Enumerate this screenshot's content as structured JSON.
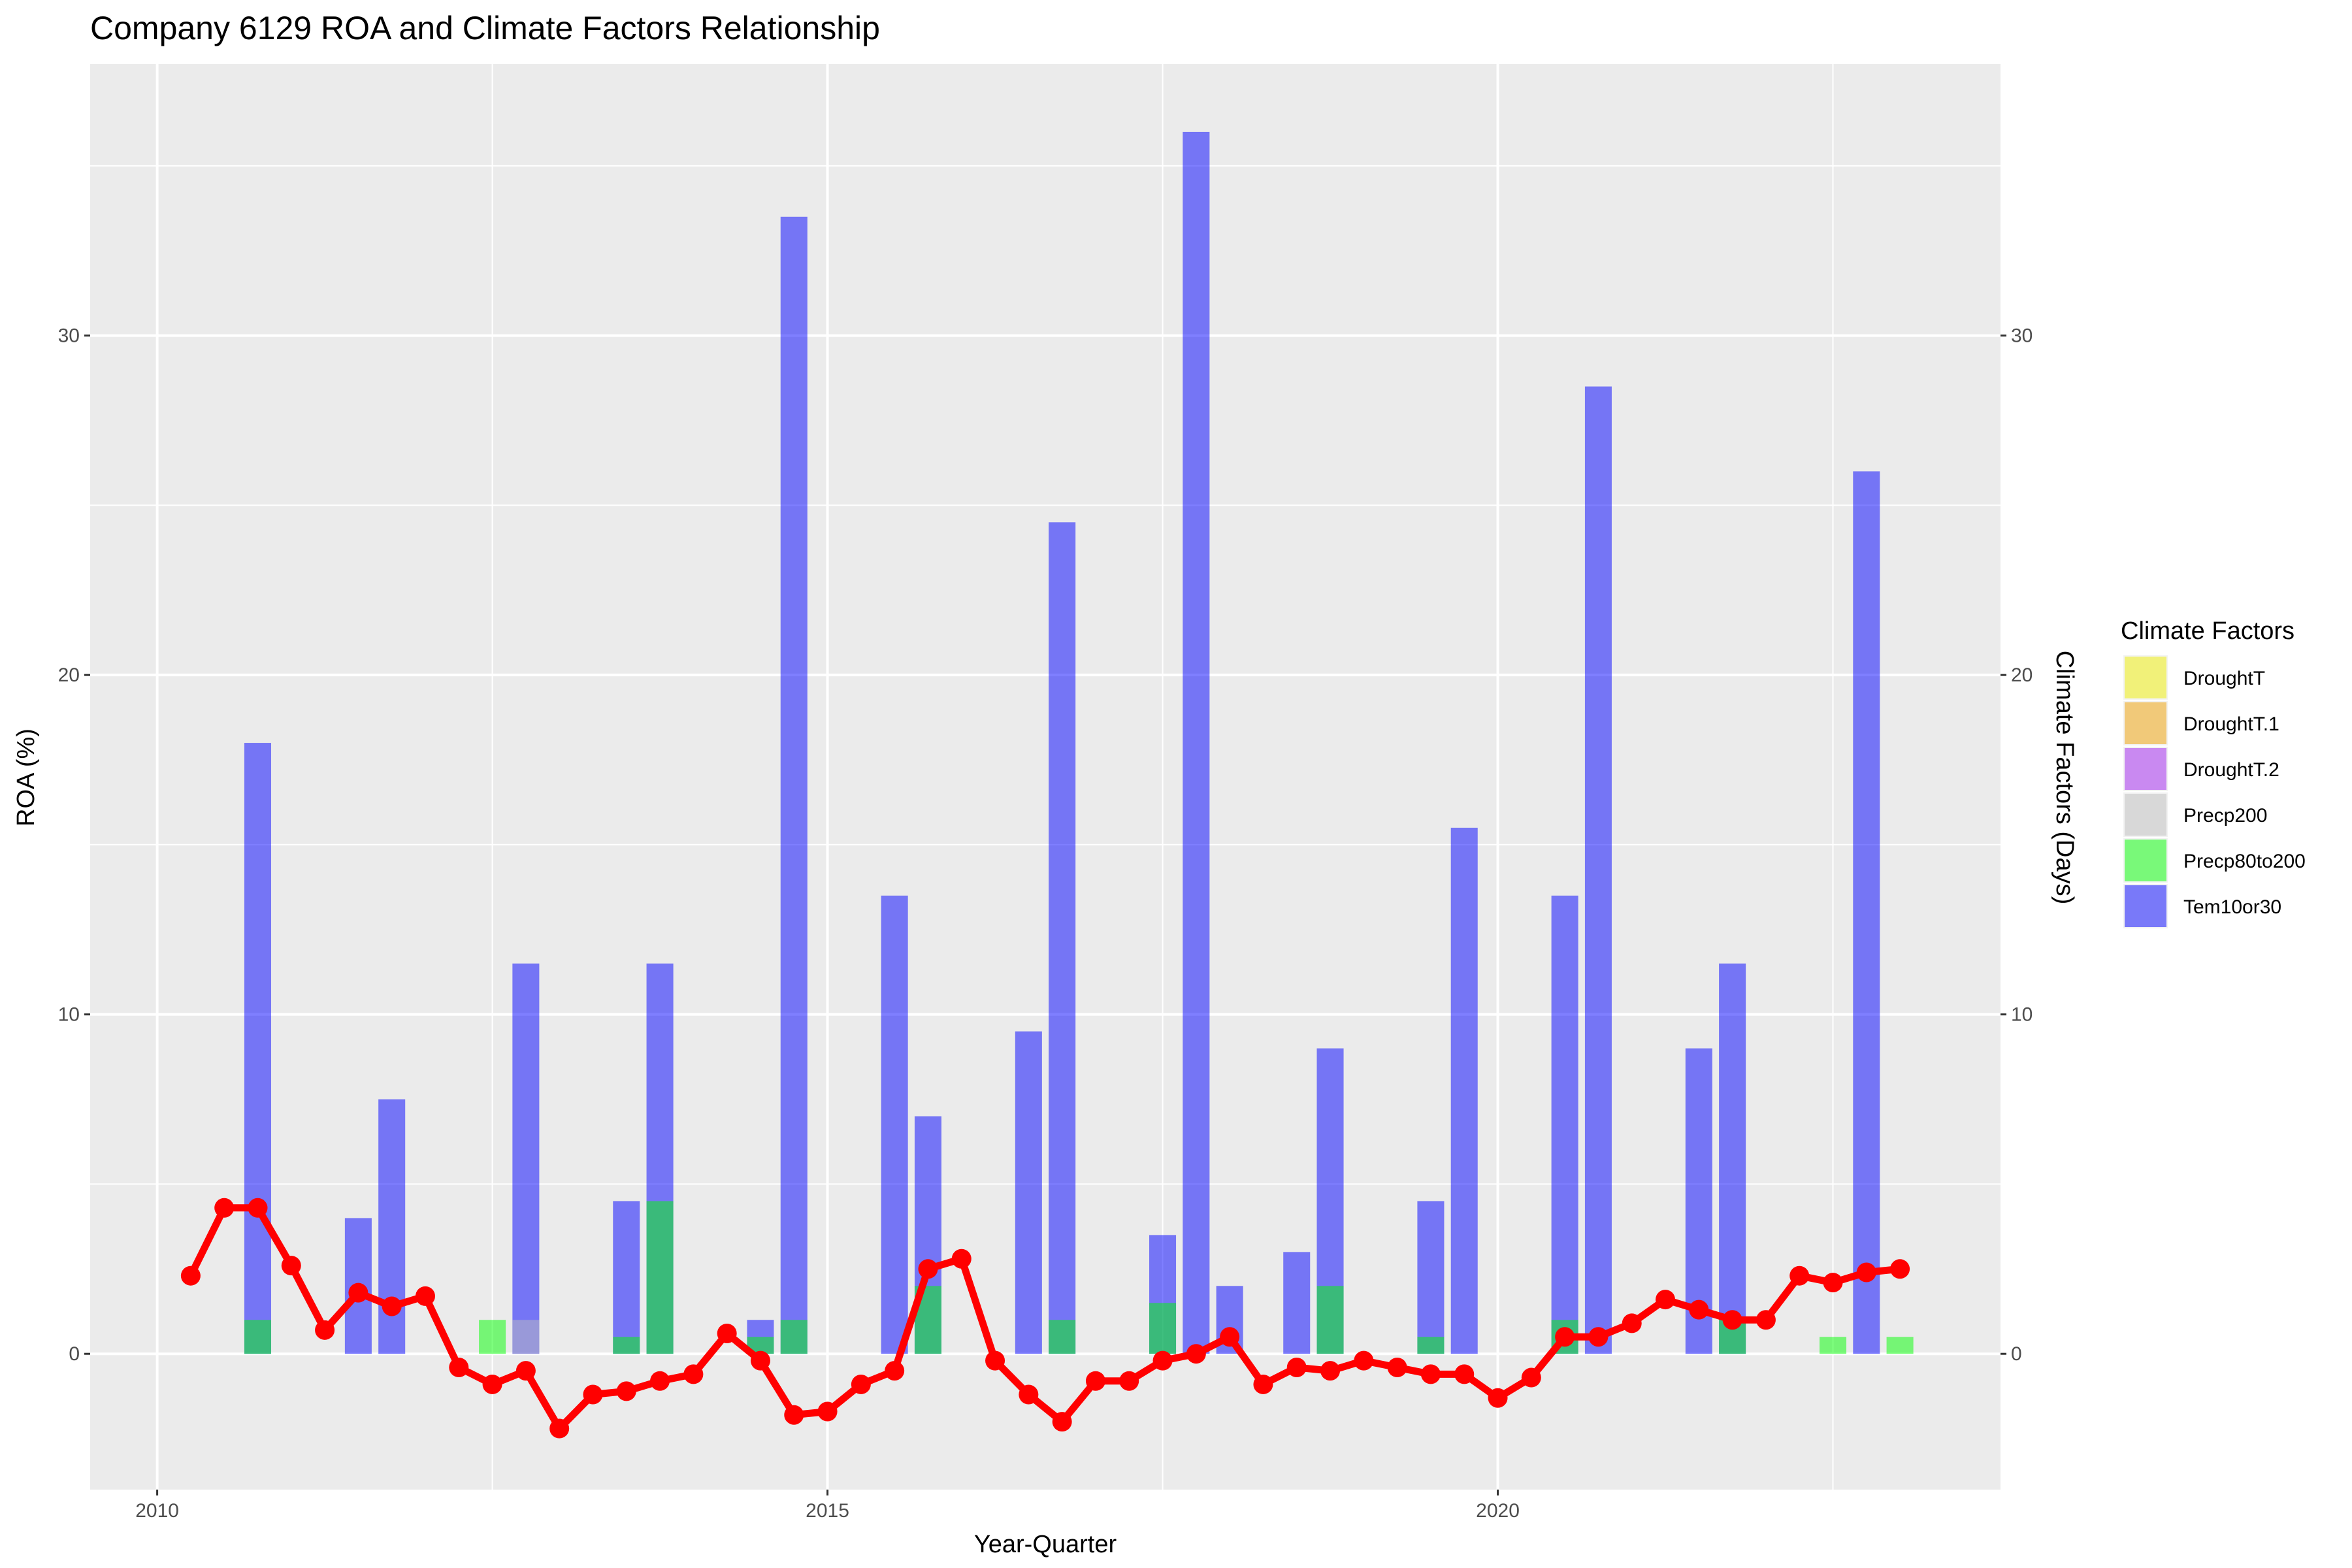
{
  "chart_data": {
    "type": "bar",
    "title": "Company 6129 ROA and Climate Factors Relationship",
    "xlabel": "Year-Quarter",
    "ylabel": "ROA (%)",
    "ylabel_right": "Climate Factors (Days)",
    "xlim": [
      2009.5,
      2023.75
    ],
    "ylim": [
      -4,
      38
    ],
    "x_ticks": [
      2010,
      2015,
      2020
    ],
    "x_tick_labels": [
      "2010",
      "2015",
      "2020"
    ],
    "y_ticks": [
      0,
      10,
      20,
      30
    ],
    "y_tick_labels": [
      "0",
      "10",
      "20",
      "30"
    ],
    "grid": true,
    "legend": {
      "title": "Climate Factors",
      "position": "right",
      "items": [
        {
          "name": "DroughtT",
          "color": "#f0f000"
        },
        {
          "name": "DroughtT.1",
          "color": "#f0a000"
        },
        {
          "name": "DroughtT.2",
          "color": "#a020f0"
        },
        {
          "name": "Precp200",
          "color": "#bebebe"
        },
        {
          "name": "Precp80to200",
          "color": "#00ff00"
        },
        {
          "name": "Tem10or30",
          "color": "#0000ff"
        }
      ]
    },
    "bar_series": [
      {
        "name": "Tem10or30",
        "color": "#0000ff",
        "points": [
          {
            "x": 2010.75,
            "y": 18
          },
          {
            "x": 2011.5,
            "y": 4
          },
          {
            "x": 2011.75,
            "y": 7.5
          },
          {
            "x": 2012.75,
            "y": 11.5
          },
          {
            "x": 2013.5,
            "y": 4.5
          },
          {
            "x": 2013.75,
            "y": 11.5
          },
          {
            "x": 2014.5,
            "y": 1
          },
          {
            "x": 2014.75,
            "y": 33.5
          },
          {
            "x": 2015.5,
            "y": 13.5
          },
          {
            "x": 2015.75,
            "y": 7
          },
          {
            "x": 2016.5,
            "y": 9.5
          },
          {
            "x": 2016.75,
            "y": 24.5
          },
          {
            "x": 2017.5,
            "y": 3.5
          },
          {
            "x": 2017.75,
            "y": 36
          },
          {
            "x": 2018.0,
            "y": 2
          },
          {
            "x": 2018.5,
            "y": 3
          },
          {
            "x": 2018.75,
            "y": 9
          },
          {
            "x": 2019.5,
            "y": 4.5
          },
          {
            "x": 2019.75,
            "y": 15.5
          },
          {
            "x": 2020.5,
            "y": 13.5
          },
          {
            "x": 2020.75,
            "y": 28.5
          },
          {
            "x": 2021.5,
            "y": 9
          },
          {
            "x": 2021.75,
            "y": 11.5
          },
          {
            "x": 2022.75,
            "y": 26
          }
        ]
      },
      {
        "name": "Precp200",
        "color": "#bebebe",
        "points": [
          {
            "x": 2012.75,
            "y": 1
          }
        ]
      },
      {
        "name": "Precp80to200",
        "color": "#00ff00",
        "points": [
          {
            "x": 2010.75,
            "y": 1
          },
          {
            "x": 2012.5,
            "y": 1
          },
          {
            "x": 2013.5,
            "y": 0.5
          },
          {
            "x": 2013.75,
            "y": 4.5
          },
          {
            "x": 2014.5,
            "y": 0.5
          },
          {
            "x": 2014.75,
            "y": 1
          },
          {
            "x": 2015.75,
            "y": 2
          },
          {
            "x": 2016.75,
            "y": 1
          },
          {
            "x": 2017.5,
            "y": 1.5
          },
          {
            "x": 2018.75,
            "y": 2
          },
          {
            "x": 2019.5,
            "y": 0.5
          },
          {
            "x": 2020.5,
            "y": 1
          },
          {
            "x": 2021.75,
            "y": 1
          },
          {
            "x": 2022.5,
            "y": 0.5
          },
          {
            "x": 2023.0,
            "y": 0.5
          }
        ]
      }
    ],
    "line_series": {
      "name": "ROA",
      "color": "#ff0000",
      "points": [
        {
          "x": 2010.25,
          "y": 2.3
        },
        {
          "x": 2010.5,
          "y": 4.3
        },
        {
          "x": 2010.75,
          "y": 4.3
        },
        {
          "x": 2011.0,
          "y": 2.6
        },
        {
          "x": 2011.25,
          "y": 0.7
        },
        {
          "x": 2011.5,
          "y": 1.8
        },
        {
          "x": 2011.75,
          "y": 1.4
        },
        {
          "x": 2012.0,
          "y": 1.7
        },
        {
          "x": 2012.25,
          "y": -0.4
        },
        {
          "x": 2012.5,
          "y": -0.9
        },
        {
          "x": 2012.75,
          "y": -0.5
        },
        {
          "x": 2013.0,
          "y": -2.2
        },
        {
          "x": 2013.25,
          "y": -1.2
        },
        {
          "x": 2013.5,
          "y": -1.1
        },
        {
          "x": 2013.75,
          "y": -0.8
        },
        {
          "x": 2014.0,
          "y": -0.6
        },
        {
          "x": 2014.25,
          "y": 0.6
        },
        {
          "x": 2014.5,
          "y": -0.2
        },
        {
          "x": 2014.75,
          "y": -1.8
        },
        {
          "x": 2015.0,
          "y": -1.7
        },
        {
          "x": 2015.25,
          "y": -0.9
        },
        {
          "x": 2015.5,
          "y": -0.5
        },
        {
          "x": 2015.75,
          "y": 2.5
        },
        {
          "x": 2016.0,
          "y": 2.8
        },
        {
          "x": 2016.25,
          "y": -0.2
        },
        {
          "x": 2016.5,
          "y": -1.2
        },
        {
          "x": 2016.75,
          "y": -2.0
        },
        {
          "x": 2017.0,
          "y": -0.8
        },
        {
          "x": 2017.25,
          "y": -0.8
        },
        {
          "x": 2017.5,
          "y": -0.2
        },
        {
          "x": 2017.75,
          "y": 0.0
        },
        {
          "x": 2018.0,
          "y": 0.5
        },
        {
          "x": 2018.25,
          "y": -0.9
        },
        {
          "x": 2018.5,
          "y": -0.4
        },
        {
          "x": 2018.75,
          "y": -0.5
        },
        {
          "x": 2019.0,
          "y": -0.2
        },
        {
          "x": 2019.25,
          "y": -0.4
        },
        {
          "x": 2019.5,
          "y": -0.6
        },
        {
          "x": 2019.75,
          "y": -0.6
        },
        {
          "x": 2020.0,
          "y": -1.3
        },
        {
          "x": 2020.25,
          "y": -0.7
        },
        {
          "x": 2020.5,
          "y": 0.5
        },
        {
          "x": 2020.75,
          "y": 0.5
        },
        {
          "x": 2021.0,
          "y": 0.9
        },
        {
          "x": 2021.25,
          "y": 1.6
        },
        {
          "x": 2021.5,
          "y": 1.3
        },
        {
          "x": 2021.75,
          "y": 1.0
        },
        {
          "x": 2022.0,
          "y": 1.0
        },
        {
          "x": 2022.25,
          "y": 2.3
        },
        {
          "x": 2022.5,
          "y": 2.1
        },
        {
          "x": 2022.75,
          "y": 2.4
        },
        {
          "x": 2023.0,
          "y": 2.5
        }
      ]
    }
  }
}
